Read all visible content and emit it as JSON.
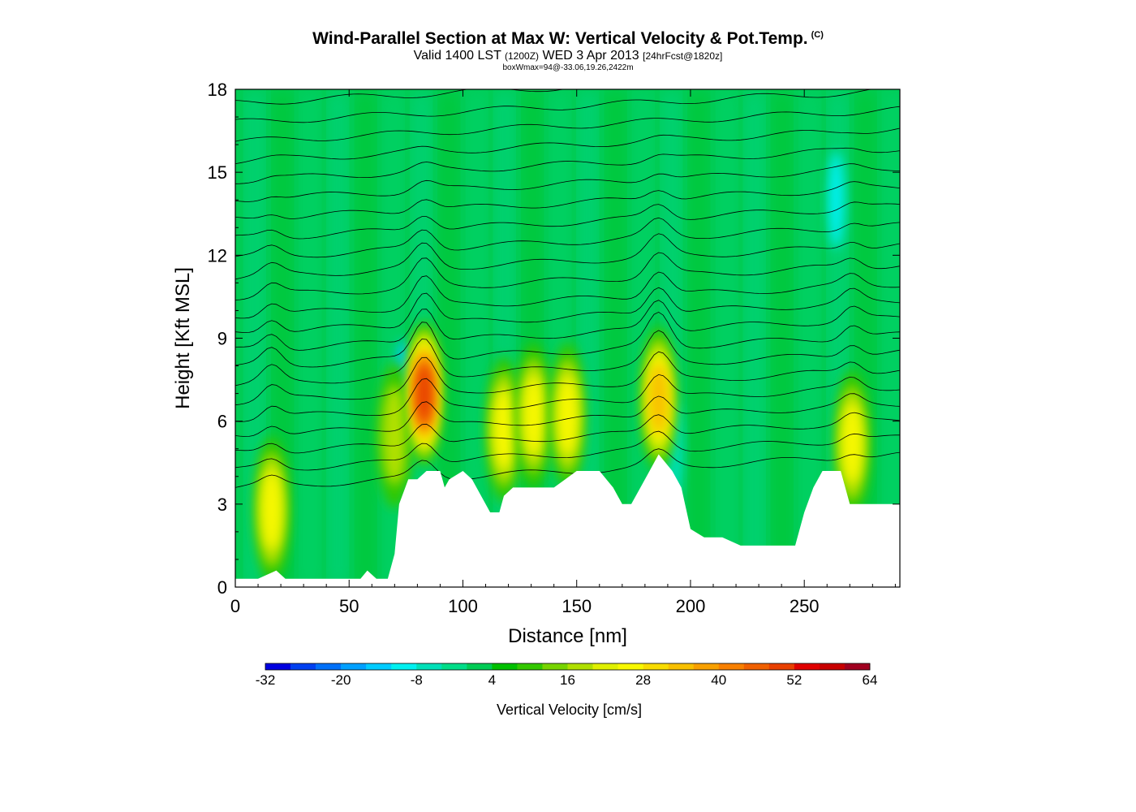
{
  "title": "Wind-Parallel Section at Max W: Vertical Velocity & Pot.Temp.",
  "title_mark": "(C)",
  "subtitle": {
    "valid": "Valid 1400 LST",
    "utc": "(1200Z)",
    "date": "WED 3 Apr 2013",
    "forecast": "[24hrFcst@1820z]"
  },
  "meta": "boxWmax=94@-33.06,19.26,2422m",
  "chart_data": {
    "type": "heatmap",
    "xlabel": "Distance [nm]",
    "ylabel": "Height [Kft MSL]",
    "xlim": [
      0,
      292
    ],
    "ylim": [
      0,
      18
    ],
    "xticks": [
      0,
      50,
      100,
      150,
      200,
      250
    ],
    "yticks": [
      0,
      3,
      6,
      9,
      12,
      15,
      18
    ],
    "colorbar": {
      "label": "Vertical Velocity [cm/s]",
      "min": -32,
      "max": 64,
      "step": 4,
      "tick_labels": [
        "-32",
        "-20",
        "-8",
        "4",
        "16",
        "28",
        "40",
        "52",
        "64"
      ],
      "colors": [
        "#0000e0",
        "#0040f0",
        "#0070f8",
        "#00a0ff",
        "#00ccff",
        "#00f0f0",
        "#00e0b8",
        "#00dd88",
        "#00cc55",
        "#00c000",
        "#33c800",
        "#77d400",
        "#b0e000",
        "#e0f000",
        "#f8f800",
        "#f8dc00",
        "#f8c000",
        "#f8a000",
        "#f88000",
        "#f06000",
        "#e84000",
        "#e00000",
        "#c80000",
        "#a00020"
      ]
    },
    "terrain_kft": [
      [
        0,
        0.3
      ],
      [
        10,
        0.3
      ],
      [
        18,
        0.6
      ],
      [
        22,
        0.3
      ],
      [
        55,
        0.3
      ],
      [
        58,
        0.6
      ],
      [
        62,
        0.3
      ],
      [
        67,
        0.3
      ],
      [
        70,
        1.2
      ],
      [
        72,
        3
      ],
      [
        76,
        3.9
      ],
      [
        80,
        3.9
      ],
      [
        84,
        4.2
      ],
      [
        90,
        4.2
      ],
      [
        92,
        3.6
      ],
      [
        94,
        3.9
      ],
      [
        100,
        4.2
      ],
      [
        104,
        3.9
      ],
      [
        108,
        3.3
      ],
      [
        112,
        2.7
      ],
      [
        116,
        2.7
      ],
      [
        118,
        3.3
      ],
      [
        122,
        3.6
      ],
      [
        140,
        3.6
      ],
      [
        145,
        3.9
      ],
      [
        150,
        4.2
      ],
      [
        160,
        4.2
      ],
      [
        166,
        3.6
      ],
      [
        170,
        3
      ],
      [
        174,
        3
      ],
      [
        178,
        3.6
      ],
      [
        182,
        4.2
      ],
      [
        186,
        4.8
      ],
      [
        192,
        4.2
      ],
      [
        196,
        3.6
      ],
      [
        200,
        2.1
      ],
      [
        206,
        1.8
      ],
      [
        214,
        1.8
      ],
      [
        222,
        1.5
      ],
      [
        246,
        1.5
      ],
      [
        250,
        2.7
      ],
      [
        254,
        3.6
      ],
      [
        258,
        4.2
      ],
      [
        266,
        4.2
      ],
      [
        270,
        3
      ],
      [
        292,
        3
      ]
    ],
    "updrafts": [
      {
        "x": 16,
        "y": 2.8,
        "peak_cms": 28
      },
      {
        "x": 70,
        "y": 5.5,
        "peak_cms": 20
      },
      {
        "x": 83,
        "y": 7.0,
        "peak_cms": 52
      },
      {
        "x": 118,
        "y": 5.7,
        "peak_cms": 30
      },
      {
        "x": 131,
        "y": 6.2,
        "peak_cms": 24
      },
      {
        "x": 146,
        "y": 6.2,
        "peak_cms": 26
      },
      {
        "x": 186,
        "y": 6.8,
        "peak_cms": 36
      },
      {
        "x": 271,
        "y": 5.2,
        "peak_cms": 26
      }
    ],
    "downdrafts": [
      {
        "x": 74,
        "y": 7.2,
        "peak_cms": -16
      },
      {
        "x": 264,
        "y": 14.0,
        "peak_cms": -12
      },
      {
        "x": 193,
        "y": 5.0,
        "peak_cms": -8
      }
    ]
  }
}
